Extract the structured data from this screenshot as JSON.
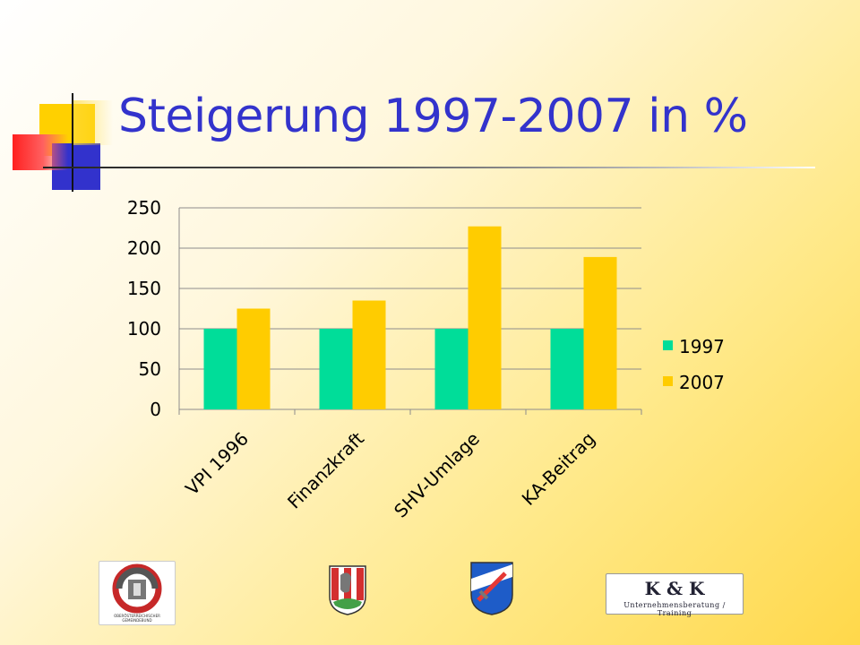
{
  "slide": {
    "title": "Steigerung 1997-2007 in %",
    "colors": {
      "title": "#3333cc",
      "series_1997": "#00dd99",
      "series_2007": "#ffcc00"
    }
  },
  "logos": {
    "gemeindebund": {
      "icon": "gemeindebund-logo-icon",
      "text": "OBERÖSTERREICHISCHER GEMEINDEBUND"
    },
    "wappen1": {
      "icon": "coat-of-arms-bird-icon"
    },
    "wappen2": {
      "icon": "coat-of-arms-sword-icon"
    },
    "kk": {
      "icon": "kk-consulting-logo-icon",
      "brand": "K & K",
      "tagline": "Unternehmensberatung / Training"
    }
  },
  "chart_data": {
    "type": "bar",
    "title": "",
    "categories": [
      "VPI 1996",
      "Finanzkraft",
      "SHV-Umlage",
      "KA-Beitrag"
    ],
    "series": [
      {
        "name": "1997",
        "values": [
          100,
          100,
          100,
          100
        ],
        "color": "#00dd99"
      },
      {
        "name": "2007",
        "values": [
          125,
          135,
          227,
          189
        ],
        "color": "#ffcc00"
      }
    ],
    "xlabel": "",
    "ylabel": "",
    "ylim": [
      0,
      250
    ],
    "yticks": [
      "0",
      "50",
      "100",
      "150",
      "200",
      "250"
    ],
    "grid": true,
    "legend": "right"
  }
}
